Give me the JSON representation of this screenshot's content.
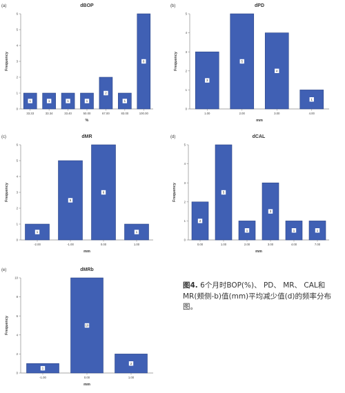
{
  "colors": {
    "bar": "#4060b4",
    "bar_edge": "#2b4486",
    "axis": "#888888"
  },
  "caption": {
    "fig_label": "图4.",
    "text": " 6个月时BOP(%)、 PD、 MR、 CAL和MR(颊侧-b)值(mm)平均减少值(d)的频率分布图。"
  },
  "chart_data": [
    {
      "id": "a",
      "panel_label": "(a)",
      "type": "bar",
      "title": "dBOP",
      "xlabel": "%",
      "ylabel": "Frequency",
      "categories": [
        "33.33",
        "33.34",
        "33.40",
        "50.00",
        "67.00",
        "83.00",
        "100.00"
      ],
      "values": [
        1,
        1,
        1,
        1,
        2,
        1,
        6
      ],
      "ylim": [
        0,
        6
      ],
      "yticks": [
        0,
        1,
        2,
        3,
        4,
        5,
        6
      ],
      "data_labels": [
        "1",
        "1",
        "1",
        "1",
        "2",
        "1",
        "6"
      ],
      "grid": false
    },
    {
      "id": "b",
      "panel_label": "(b)",
      "type": "bar",
      "title": "dPD",
      "xlabel": "mm",
      "ylabel": "Frequency",
      "categories": [
        "1.00",
        "2.00",
        "3.00",
        "4.00"
      ],
      "values": [
        3,
        5,
        4,
        1
      ],
      "ylim": [
        0,
        5
      ],
      "yticks": [
        0,
        1,
        2,
        3,
        4,
        5
      ],
      "data_labels": [
        "3",
        "5",
        "4",
        "1"
      ],
      "grid": false
    },
    {
      "id": "c",
      "panel_label": "(c)",
      "type": "bar",
      "title": "dMR",
      "xlabel": "mm",
      "ylabel": "Frequency",
      "categories": [
        "-2.00",
        "-1.00",
        "0.00",
        "1.00"
      ],
      "values": [
        1,
        5,
        6,
        1
      ],
      "ylim": [
        0,
        6
      ],
      "yticks": [
        0,
        1,
        2,
        3,
        4,
        5,
        6
      ],
      "data_labels": [
        "1",
        "5",
        "6",
        "1"
      ],
      "grid": false
    },
    {
      "id": "d",
      "panel_label": "(d)",
      "type": "bar",
      "title": "dCAL",
      "xlabel": "mm",
      "ylabel": "Frequency",
      "categories": [
        "0.00",
        "1.00",
        "2.00",
        "3.00",
        "4.00",
        "7.00"
      ],
      "values": [
        2,
        5,
        1,
        3,
        1,
        1
      ],
      "ylim": [
        0,
        5
      ],
      "yticks": [
        0,
        1,
        2,
        3,
        4,
        5
      ],
      "data_labels": [
        "2",
        "5",
        "1",
        "3",
        "1",
        "1"
      ],
      "grid": false
    },
    {
      "id": "e",
      "panel_label": "(e)",
      "type": "bar",
      "title": "dMRb",
      "xlabel": "mm",
      "ylabel": "Frequency",
      "categories": [
        "-1.00",
        "0.00",
        "1.00"
      ],
      "values": [
        1,
        10,
        2
      ],
      "ylim": [
        0,
        10
      ],
      "yticks": [
        0,
        2,
        4,
        6,
        8,
        10
      ],
      "data_labels": [
        "1",
        "10",
        "2"
      ],
      "grid": false
    }
  ]
}
